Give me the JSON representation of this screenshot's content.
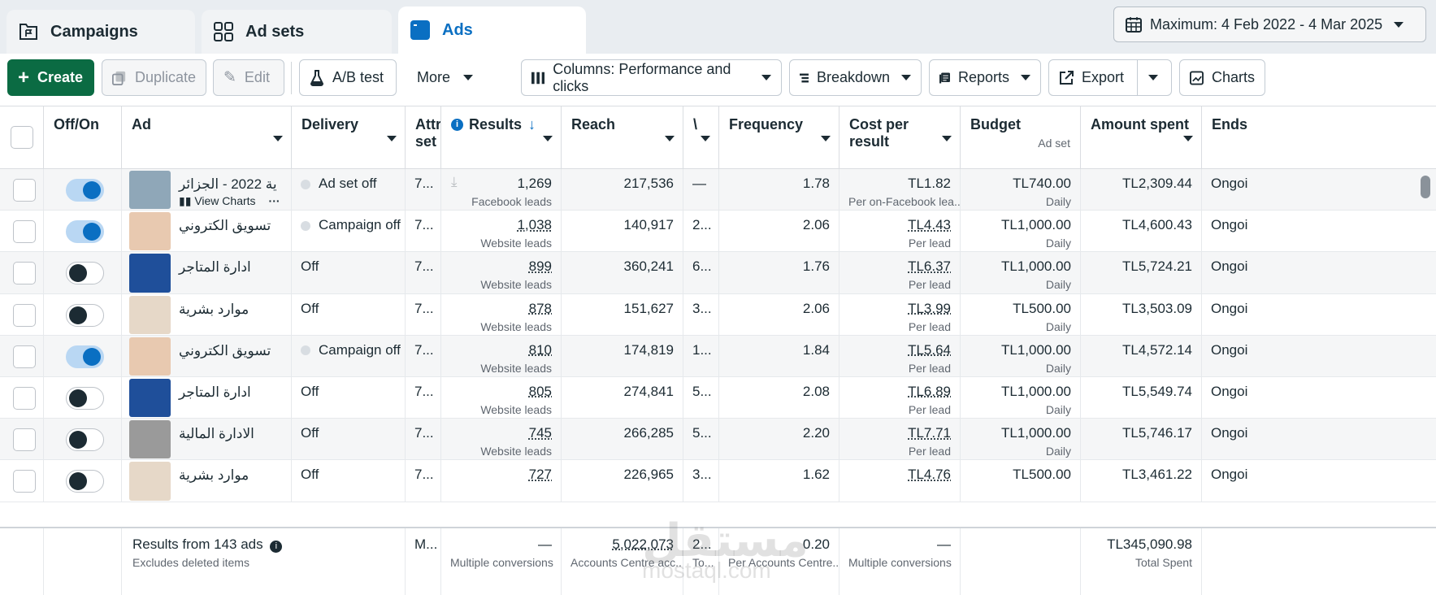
{
  "tabs": [
    {
      "label": "Campaigns",
      "icon": "folder-flag-icon"
    },
    {
      "label": "Ad sets",
      "icon": "grid-icon"
    },
    {
      "label": "Ads",
      "icon": "ad-window-icon"
    }
  ],
  "date_range": "Maximum: 4 Feb 2022 - 4 Mar 2025",
  "toolbar": {
    "create": "Create",
    "duplicate": "Duplicate",
    "edit": "Edit",
    "ab_test": "A/B test",
    "more": "More",
    "columns": "Columns: Performance and clicks",
    "breakdown": "Breakdown",
    "reports": "Reports",
    "export": "Export",
    "charts": "Charts"
  },
  "columns": {
    "onoff": "Off/On",
    "ad": "Ad",
    "delivery": "Delivery",
    "attr": "Attr set",
    "results": "Results",
    "reach": "Reach",
    "impr": "\\",
    "frequency": "Frequency",
    "cost": "Cost per result",
    "budget": "Budget",
    "budget_sub": "Ad set",
    "amount": "Amount spent",
    "ends": "Ends"
  },
  "rows": [
    {
      "on": true,
      "name": "ية 2022 - الجزائر",
      "view_charts": "View Charts",
      "delivery": "Ad set off",
      "delivery_dot": true,
      "attr": "7...",
      "results": "1,269",
      "results_sub": "Facebook leads",
      "reach": "217,536",
      "impr": "—",
      "frequency": "1.78",
      "cost": "TL1.82",
      "cost_sub": "Per on-Facebook lea...",
      "budget": "TL740.00",
      "budget_sub": "Daily",
      "amount": "TL2,309.44",
      "ends": "Ongoi",
      "thumb": "#8fa7b8"
    },
    {
      "on": true,
      "name": "تسويق الكتروني",
      "delivery": "Campaign off",
      "delivery_dot": true,
      "attr": "7...",
      "results": "1,038",
      "results_sub": "Website leads",
      "reach": "140,917",
      "impr": "2...",
      "frequency": "2.06",
      "cost": "TL4.43",
      "cost_sub": "Per lead",
      "budget": "TL1,000.00",
      "budget_sub": "Daily",
      "amount": "TL4,600.43",
      "ends": "Ongoi",
      "thumb": "#e8c9b0"
    },
    {
      "on": false,
      "name": "ادارة المتاجر",
      "delivery": "Off",
      "delivery_dot": false,
      "attr": "7...",
      "results": "899",
      "results_sub": "Website leads",
      "reach": "360,241",
      "impr": "6...",
      "frequency": "1.76",
      "cost": "TL6.37",
      "cost_sub": "Per lead",
      "budget": "TL1,000.00",
      "budget_sub": "Daily",
      "amount": "TL5,724.21",
      "ends": "Ongoi",
      "thumb": "#1f4f9a"
    },
    {
      "on": false,
      "name": "موارد بشرية",
      "delivery": "Off",
      "delivery_dot": false,
      "attr": "7...",
      "results": "878",
      "results_sub": "Website leads",
      "reach": "151,627",
      "impr": "3...",
      "frequency": "2.06",
      "cost": "TL3.99",
      "cost_sub": "Per lead",
      "budget": "TL500.00",
      "budget_sub": "Daily",
      "amount": "TL3,503.09",
      "ends": "Ongoi",
      "thumb": "#e6d8c8"
    },
    {
      "on": true,
      "name": "تسويق الكتروني",
      "delivery": "Campaign off",
      "delivery_dot": true,
      "attr": "7...",
      "results": "810",
      "results_sub": "Website leads",
      "reach": "174,819",
      "impr": "1...",
      "frequency": "1.84",
      "cost": "TL5.64",
      "cost_sub": "Per lead",
      "budget": "TL1,000.00",
      "budget_sub": "Daily",
      "amount": "TL4,572.14",
      "ends": "Ongoi",
      "thumb": "#e8c9b0"
    },
    {
      "on": false,
      "name": "ادارة المتاجر",
      "delivery": "Off",
      "delivery_dot": false,
      "attr": "7...",
      "results": "805",
      "results_sub": "Website leads",
      "reach": "274,841",
      "impr": "5...",
      "frequency": "2.08",
      "cost": "TL6.89",
      "cost_sub": "Per lead",
      "budget": "TL1,000.00",
      "budget_sub": "Daily",
      "amount": "TL5,549.74",
      "ends": "Ongoi",
      "thumb": "#1f4f9a"
    },
    {
      "on": false,
      "name": "الادارة المالية",
      "delivery": "Off",
      "delivery_dot": false,
      "attr": "7...",
      "results": "745",
      "results_sub": "Website leads",
      "reach": "266,285",
      "impr": "5...",
      "frequency": "2.20",
      "cost": "TL7.71",
      "cost_sub": "Per lead",
      "budget": "TL1,000.00",
      "budget_sub": "Daily",
      "amount": "TL5,746.17",
      "ends": "Ongoi",
      "thumb": "#9a9a9a"
    },
    {
      "on": false,
      "name": "موارد بشرية",
      "delivery": "Off",
      "delivery_dot": false,
      "attr": "7...",
      "results": "727",
      "results_sub": "",
      "reach": "226,965",
      "impr": "3...",
      "frequency": "1.62",
      "cost": "TL4.76",
      "cost_sub": "",
      "budget": "TL500.00",
      "budget_sub": "",
      "amount": "TL3,461.22",
      "ends": "Ongoi",
      "thumb": "#e6d8c8"
    }
  ],
  "footer": {
    "results_from": "Results from 143 ads",
    "excludes": "Excludes deleted items",
    "attr": "M...",
    "results": "—",
    "results_sub": "Multiple conversions",
    "reach": "5,022,073",
    "reach_sub": "Accounts Centre acc...",
    "impr": "2...",
    "impr_sub": "To...",
    "frequency": "0.20",
    "frequency_sub": "Per Accounts Centre...",
    "cost": "—",
    "cost_sub": "Multiple conversions",
    "amount": "TL345,090.98",
    "amount_sub": "Total Spent"
  },
  "watermark": {
    "line1": "مستقل",
    "line2": "mostaql.com"
  }
}
